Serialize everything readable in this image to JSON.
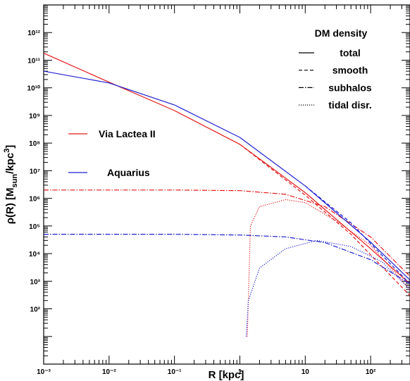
{
  "chart_data": {
    "type": "line",
    "xlabel": "R  [kpc]",
    "ylabel": "ρ(R)  [M_sun/kpc^3]",
    "x_scale": "log",
    "y_scale": "log",
    "xlim": [
      0.001,
      400
    ],
    "ylim": [
      1,
      10000000000000
    ],
    "grid": false,
    "x_tick_labels": [
      "10⁻³",
      "10⁻²",
      "10⁻¹",
      "1",
      "10",
      "10²"
    ],
    "y_tick_labels": [
      "10²",
      "10³",
      "10⁴",
      "10⁵",
      "10⁶",
      "10⁷",
      "10⁸",
      "10⁹",
      "10¹⁰",
      "10¹¹",
      "10¹²"
    ],
    "style_legend": {
      "title": "DM density",
      "entries": [
        {
          "label": "total",
          "dash": "solid"
        },
        {
          "label": "smooth",
          "dash": "dashed"
        },
        {
          "label": "subhalos",
          "dash": "dashdot"
        },
        {
          "label": "tidal disr.",
          "dash": "dotted"
        }
      ]
    },
    "sim_legend": [
      {
        "label": "Via Lactea II",
        "color": "#e31a1c"
      },
      {
        "label": "Aquarius",
        "color": "#1f1fd1"
      }
    ],
    "series": [
      {
        "name": "Via Lactea II",
        "component": "total",
        "color": "#e31a1c",
        "dash": "solid",
        "points": [
          [
            0.001,
            180000000000.0
          ],
          [
            0.01,
            16000000000.0
          ],
          [
            0.1,
            1500000000.0
          ],
          [
            1,
            90000000.0
          ],
          [
            10,
            1600000.0
          ],
          [
            100,
            15000.0
          ],
          [
            400,
            800.0
          ]
        ]
      },
      {
        "name": "Via Lactea II",
        "component": "smooth",
        "color": "#e31a1c",
        "dash": "dashed",
        "points": [
          [
            1,
            90000000.0
          ],
          [
            10,
            1300000.0
          ],
          [
            50,
            50000.0
          ],
          [
            100,
            9000.0
          ],
          [
            400,
            300.0
          ]
        ]
      },
      {
        "name": "Via Lactea II",
        "component": "subhalos",
        "color": "#e31a1c",
        "dash": "dashdot",
        "points": [
          [
            0.001,
            2000000.0
          ],
          [
            0.1,
            2000000.0
          ],
          [
            1,
            1900000.0
          ],
          [
            5,
            1400000.0
          ],
          [
            20,
            500000.0
          ],
          [
            100,
            40000.0
          ],
          [
            400,
            1500.0
          ]
        ]
      },
      {
        "name": "Via Lactea II",
        "component": "tidal disr.",
        "color": "#e31a1c",
        "dash": "dotted",
        "points": [
          [
            1.3,
            10
          ],
          [
            1.45,
            100000.0
          ],
          [
            2,
            500000.0
          ],
          [
            5,
            900000.0
          ],
          [
            10,
            700000.0
          ],
          [
            30,
            150000.0
          ],
          [
            100,
            20000.0
          ],
          [
            400,
            500.0
          ]
        ]
      },
      {
        "name": "Aquarius",
        "component": "total",
        "color": "#1f1fd1",
        "dash": "solid",
        "points": [
          [
            0.001,
            40000000000.0
          ],
          [
            0.01,
            15000000000.0
          ],
          [
            0.1,
            2400000000.0
          ],
          [
            1,
            160000000.0
          ],
          [
            10,
            2800000.0
          ],
          [
            100,
            26000.0
          ],
          [
            400,
            1100.0
          ]
        ]
      },
      {
        "name": "Aquarius",
        "component": "smooth",
        "color": "#1f1fd1",
        "dash": "dashed",
        "points": [
          [
            10,
            2800000.0
          ],
          [
            50,
            130000.0
          ],
          [
            100,
            23000.0
          ],
          [
            400,
            800.0
          ]
        ]
      },
      {
        "name": "Aquarius",
        "component": "subhalos",
        "color": "#1f1fd1",
        "dash": "dashdot",
        "points": [
          [
            0.001,
            50000.0
          ],
          [
            0.1,
            50000.0
          ],
          [
            1,
            47000.0
          ],
          [
            5,
            40000.0
          ],
          [
            20,
            25000.0
          ],
          [
            100,
            6000.0
          ],
          [
            400,
            800.0
          ]
        ]
      },
      {
        "name": "Aquarius",
        "component": "tidal disr.",
        "color": "#1f1fd1",
        "dash": "dotted",
        "points": [
          [
            1.25,
            10
          ],
          [
            1.35,
            200.0
          ],
          [
            2,
            3000.0
          ],
          [
            5,
            15000.0
          ],
          [
            15,
            30000.0
          ],
          [
            50,
            18000.0
          ],
          [
            150,
            5000.0
          ],
          [
            400,
            500.0
          ]
        ]
      }
    ]
  }
}
